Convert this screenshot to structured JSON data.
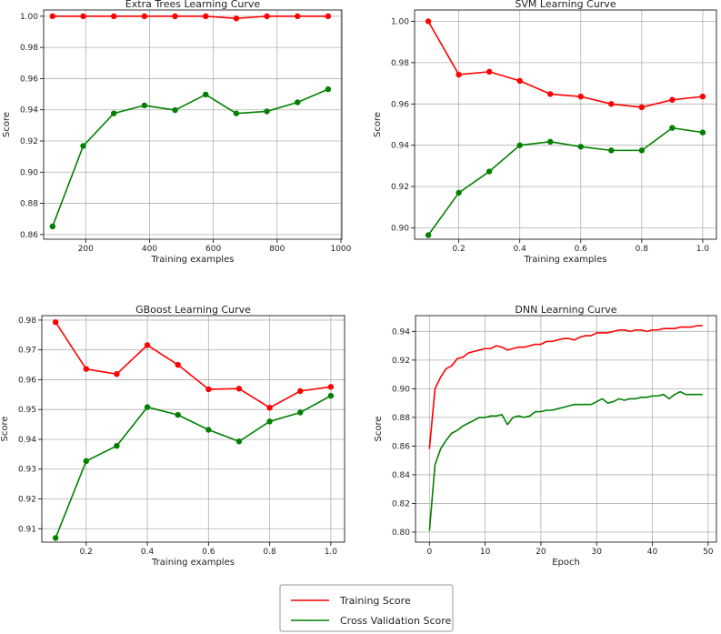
{
  "colors": {
    "training": "#ff0000",
    "validation": "#008000",
    "grid": "#b0b0b0",
    "axis": "#000000"
  },
  "legend": {
    "entries": [
      "Training Score",
      "Cross Validation Score"
    ],
    "placement": "bottom-center"
  },
  "chart_data": [
    {
      "type": "line",
      "title": "Extra Trees Learning Curve",
      "xlabel": "Training examples",
      "ylabel": "Score",
      "xlim": [
        68,
        1003
      ],
      "ylim": [
        0.857,
        1.004
      ],
      "xticks": [
        200,
        400,
        600,
        800,
        1000
      ],
      "xtick_labels": [
        "200",
        "400",
        "600",
        "800",
        "1000"
      ],
      "yticks": [
        0.86,
        0.88,
        0.9,
        0.92,
        0.94,
        0.96,
        0.98,
        1.0
      ],
      "ytick_labels": [
        "0.86",
        "0.88",
        "0.90",
        "0.92",
        "0.94",
        "0.96",
        "0.98",
        "1.00"
      ],
      "markers": true,
      "x": [
        96,
        192,
        288,
        384,
        480,
        576,
        672,
        768,
        864,
        960
      ],
      "series": [
        {
          "name": "Training Score",
          "values": [
            1.0,
            1.0,
            1.0,
            1.0,
            1.0,
            1.0,
            0.9986,
            1.0,
            1.0,
            1.0
          ]
        },
        {
          "name": "Cross Validation Score",
          "values": [
            0.8652,
            0.9168,
            0.9377,
            0.9428,
            0.9398,
            0.9498,
            0.9377,
            0.939,
            0.9448,
            0.9532
          ]
        }
      ]
    },
    {
      "type": "line",
      "title": "SVM Learning Curve",
      "xlabel": "Training examples",
      "ylabel": "Score",
      "xlim": [
        0.055,
        1.045
      ],
      "ylim": [
        0.8945,
        1.0055
      ],
      "xticks": [
        0.2,
        0.4,
        0.6,
        0.8,
        1.0
      ],
      "xtick_labels": [
        "0.2",
        "0.4",
        "0.6",
        "0.8",
        "1.0"
      ],
      "yticks": [
        0.9,
        0.92,
        0.94,
        0.96,
        0.98,
        1.0
      ],
      "ytick_labels": [
        "0.90",
        "0.92",
        "0.94",
        "0.96",
        "0.98",
        "1.00"
      ],
      "markers": true,
      "x": [
        0.1,
        0.2,
        0.3,
        0.4,
        0.5,
        0.6,
        0.7,
        0.8,
        0.9,
        1.0
      ],
      "series": [
        {
          "name": "Training Score",
          "values": [
            1.0,
            0.9742,
            0.9756,
            0.9712,
            0.9648,
            0.9636,
            0.96,
            0.9584,
            0.962,
            0.9636
          ]
        },
        {
          "name": "Cross Validation Score",
          "values": [
            0.8965,
            0.917,
            0.9273,
            0.94,
            0.9417,
            0.9393,
            0.9375,
            0.9375,
            0.9484,
            0.9462
          ]
        }
      ]
    },
    {
      "type": "line",
      "title": "GBoost Learning Curve",
      "xlabel": "Training examples",
      "ylabel": "Score",
      "xlim": [
        0.055,
        1.045
      ],
      "ylim": [
        0.9055,
        0.9815
      ],
      "xticks": [
        0.2,
        0.4,
        0.6,
        0.8,
        1.0
      ],
      "xtick_labels": [
        "0.2",
        "0.4",
        "0.6",
        "0.8",
        "1.0"
      ],
      "yticks": [
        0.91,
        0.92,
        0.93,
        0.94,
        0.95,
        0.96,
        0.97,
        0.98
      ],
      "ytick_labels": [
        "0.91",
        "0.92",
        "0.93",
        "0.94",
        "0.95",
        "0.96",
        "0.97",
        "0.98"
      ],
      "markers": true,
      "x": [
        0.1,
        0.2,
        0.3,
        0.4,
        0.5,
        0.6,
        0.7,
        0.8,
        0.9,
        1.0
      ],
      "series": [
        {
          "name": "Training Score",
          "values": [
            0.9793,
            0.9636,
            0.9619,
            0.9716,
            0.965,
            0.9568,
            0.957,
            0.9506,
            0.9562,
            0.9576
          ]
        },
        {
          "name": "Cross Validation Score",
          "values": [
            0.9069,
            0.9327,
            0.9378,
            0.9508,
            0.9482,
            0.9432,
            0.9393,
            0.946,
            0.949,
            0.9546
          ]
        }
      ]
    },
    {
      "type": "line",
      "title": "DNN Learning Curve",
      "xlabel": "Epoch",
      "ylabel": "Score",
      "xlim": [
        -2.5,
        51.5
      ],
      "ylim": [
        0.793,
        0.951
      ],
      "xticks": [
        0,
        10,
        20,
        30,
        40,
        50
      ],
      "xtick_labels": [
        "0",
        "10",
        "20",
        "30",
        "40",
        "50"
      ],
      "yticks": [
        0.8,
        0.82,
        0.84,
        0.86,
        0.88,
        0.9,
        0.92,
        0.94
      ],
      "ytick_labels": [
        "0.80",
        "0.82",
        "0.84",
        "0.86",
        "0.88",
        "0.90",
        "0.92",
        "0.94"
      ],
      "markers": false,
      "x": [
        0,
        1,
        2,
        3,
        4,
        5,
        6,
        7,
        8,
        9,
        10,
        11,
        12,
        13,
        14,
        15,
        16,
        17,
        18,
        19,
        20,
        21,
        22,
        23,
        24,
        25,
        26,
        27,
        28,
        29,
        30,
        31,
        32,
        33,
        34,
        35,
        36,
        37,
        38,
        39,
        40,
        41,
        42,
        43,
        44,
        45,
        46,
        47,
        48,
        49
      ],
      "series": [
        {
          "name": "Training Score",
          "values": [
            0.858,
            0.9,
            0.908,
            0.914,
            0.916,
            0.921,
            0.922,
            0.925,
            0.926,
            0.927,
            0.928,
            0.928,
            0.93,
            0.929,
            0.927,
            0.928,
            0.929,
            0.929,
            0.93,
            0.931,
            0.931,
            0.933,
            0.933,
            0.934,
            0.935,
            0.935,
            0.934,
            0.936,
            0.937,
            0.937,
            0.939,
            0.939,
            0.939,
            0.94,
            0.941,
            0.941,
            0.94,
            0.941,
            0.941,
            0.94,
            0.941,
            0.941,
            0.942,
            0.942,
            0.942,
            0.943,
            0.943,
            0.943,
            0.944,
            0.944
          ]
        },
        {
          "name": "Cross Validation Score",
          "values": [
            0.801,
            0.847,
            0.858,
            0.864,
            0.869,
            0.871,
            0.874,
            0.876,
            0.878,
            0.88,
            0.88,
            0.881,
            0.881,
            0.882,
            0.875,
            0.88,
            0.881,
            0.88,
            0.881,
            0.884,
            0.884,
            0.885,
            0.885,
            0.886,
            0.887,
            0.888,
            0.889,
            0.889,
            0.889,
            0.889,
            0.891,
            0.893,
            0.89,
            0.891,
            0.893,
            0.892,
            0.893,
            0.893,
            0.894,
            0.894,
            0.895,
            0.895,
            0.896,
            0.893,
            0.896,
            0.898,
            0.896,
            0.896,
            0.896,
            0.896
          ]
        }
      ]
    }
  ]
}
